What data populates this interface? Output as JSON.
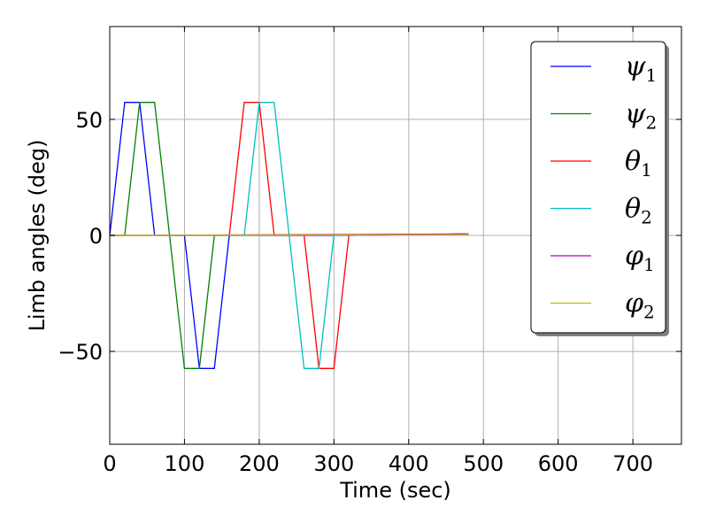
{
  "chart_data": {
    "type": "line",
    "xlabel": "Time (sec)",
    "ylabel": "Limb angles (deg)",
    "xlim": [
      0,
      765
    ],
    "ylim": [
      -90,
      90
    ],
    "xticks": [
      0,
      100,
      200,
      300,
      400,
      500,
      600,
      700
    ],
    "xtick_labels": [
      "0",
      "100",
      "200",
      "300",
      "400",
      "500",
      "600",
      "700"
    ],
    "yticks": [
      -50,
      0,
      50
    ],
    "ytick_labels": [
      "−50",
      "0",
      "50"
    ],
    "grid": true,
    "legend_position": "top-right",
    "series": [
      {
        "name": "ψ",
        "sub": "1",
        "color": "#0000ff",
        "x": [
          0,
          20,
          40,
          60,
          100,
          120,
          140,
          160,
          180,
          200,
          220,
          240,
          260,
          280,
          300,
          320,
          480
        ],
        "y": [
          0,
          57.3,
          57.3,
          0,
          0,
          -57.3,
          -57.3,
          0,
          0,
          0,
          0,
          0,
          0,
          0,
          0,
          0,
          0.6
        ]
      },
      {
        "name": "ψ",
        "sub": "2",
        "color": "#008000",
        "x": [
          0,
          20,
          40,
          60,
          80,
          100,
          120,
          140,
          160,
          480
        ],
        "y": [
          0,
          0,
          57.3,
          57.3,
          0,
          -57.3,
          -57.3,
          0,
          0,
          0.6
        ]
      },
      {
        "name": "θ",
        "sub": "1",
        "color": "#ff0000",
        "x": [
          0,
          160,
          180,
          200,
          220,
          260,
          280,
          300,
          320,
          480
        ],
        "y": [
          0,
          0,
          57.3,
          57.3,
          0,
          0,
          -57.3,
          -57.3,
          0,
          0.6
        ]
      },
      {
        "name": "θ",
        "sub": "2",
        "color": "#00bfbf",
        "x": [
          0,
          180,
          200,
          220,
          240,
          260,
          280,
          300,
          480
        ],
        "y": [
          0,
          0,
          57.3,
          57.3,
          0,
          -57.3,
          -57.3,
          0,
          0.6
        ]
      },
      {
        "name": "φ",
        "sub": "1",
        "color": "#bf00bf",
        "x": [
          0,
          480
        ],
        "y": [
          0,
          0.6
        ]
      },
      {
        "name": "φ",
        "sub": "2",
        "color": "#bfbf00",
        "x": [
          0,
          480
        ],
        "y": [
          0,
          0.3
        ]
      }
    ]
  }
}
